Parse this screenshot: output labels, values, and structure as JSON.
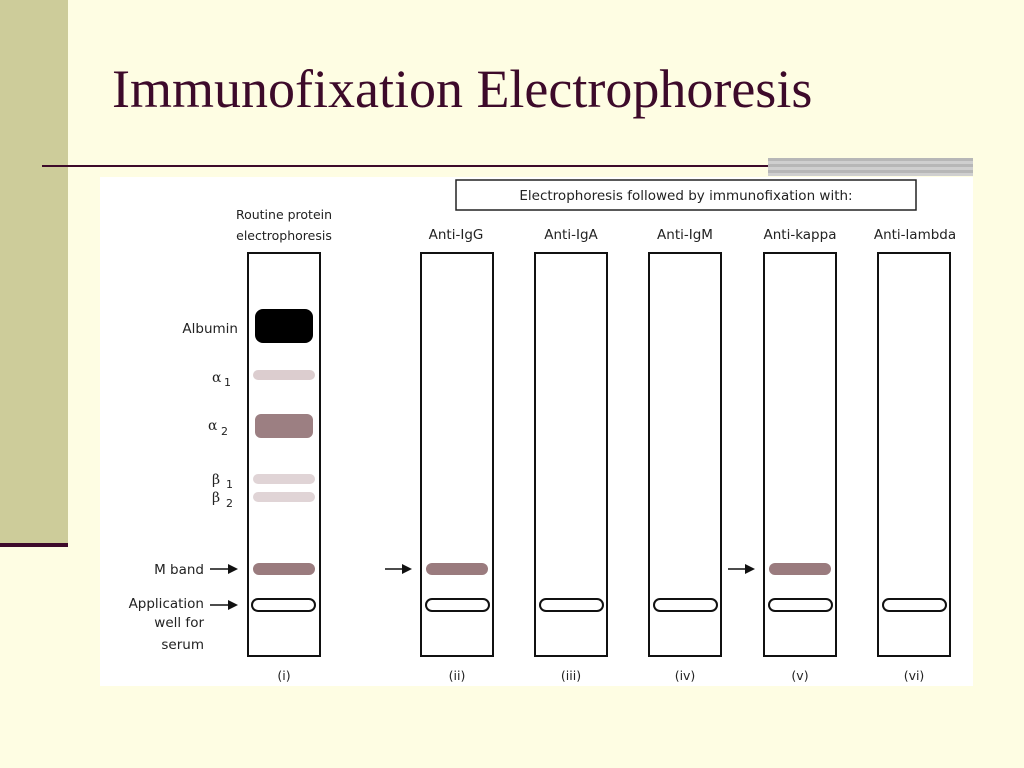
{
  "slide": {
    "title": "Immunofixation Electrophoresis"
  },
  "figure": {
    "header": "Electrophoresis followed by immunofixation with:",
    "routine_label_line1": "Routine protein",
    "routine_label_line2": "electrophoresis",
    "band_labels": {
      "albumin": "Albumin",
      "alpha": "α",
      "alpha1_sub": "1",
      "alpha2_sub": "2",
      "beta": "β",
      "beta1_sub": "1",
      "beta2_sub": "2",
      "m_band": "M band",
      "application_line1": "Application",
      "application_line2": "well for",
      "application_line3": "serum"
    },
    "lanes": [
      {
        "numeral": "(i)",
        "header": "",
        "m_band": true
      },
      {
        "numeral": "(ii)",
        "header": "Anti-IgG",
        "m_band": true
      },
      {
        "numeral": "(iii)",
        "header": "Anti-IgA",
        "m_band": false
      },
      {
        "numeral": "(iv)",
        "header": "Anti-IgM",
        "m_band": false
      },
      {
        "numeral": "(v)",
        "header": "Anti-kappa",
        "m_band": true
      },
      {
        "numeral": "(vi)",
        "header": "Anti-lambda",
        "m_band": false
      }
    ],
    "colors": {
      "albumin": "#000000",
      "alpha1": "#dccdcf",
      "alpha2": "#9c7f82",
      "beta": "#e0d4d6",
      "m_band": "#9a7b7e"
    }
  }
}
